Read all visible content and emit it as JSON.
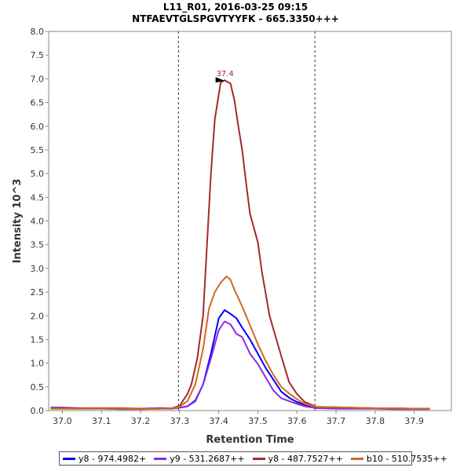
{
  "title_line1": "L11_R01, 2016-03-25 09:15",
  "title_line2": "NTFAEVTGLSPGVTYYFK - 665.3350+++",
  "chart_data": {
    "type": "line",
    "xlabel": "Retention Time",
    "ylabel": "Intensity 10^3",
    "xlim": [
      36.965,
      37.995
    ],
    "ylim": [
      0,
      8.0
    ],
    "x_ticks": [
      "37.0",
      "37.1",
      "37.2",
      "37.3",
      "37.4",
      "37.5",
      "37.6",
      "37.7",
      "37.8",
      "37.9"
    ],
    "y_ticks": [
      "0.0",
      "0.5",
      "1.0",
      "1.5",
      "2.0",
      "2.5",
      "3.0",
      "3.5",
      "4.0",
      "4.5",
      "5.0",
      "5.5",
      "6.0",
      "6.5",
      "7.0",
      "7.5",
      "8.0"
    ],
    "integration_bounds": [
      37.297,
      37.646
    ],
    "peak_label": {
      "text": "37.4",
      "x": 37.42,
      "y": 6.97,
      "color": "#a52a2a"
    },
    "grid": false,
    "legend_position": "bottom",
    "series": [
      {
        "name": "y8 - 974.4982+",
        "color": "#0000ff",
        "x": [
          36.97,
          37.0,
          37.05,
          37.1,
          37.15,
          37.2,
          37.25,
          37.28,
          37.3,
          37.32,
          37.34,
          37.36,
          37.38,
          37.4,
          37.415,
          37.43,
          37.445,
          37.46,
          37.48,
          37.5,
          37.52,
          37.54,
          37.56,
          37.58,
          37.6,
          37.62,
          37.65,
          37.7,
          37.75,
          37.8,
          37.85,
          37.9,
          37.94
        ],
        "y": [
          0.06,
          0.06,
          0.05,
          0.05,
          0.04,
          0.04,
          0.05,
          0.05,
          0.06,
          0.09,
          0.2,
          0.55,
          1.2,
          1.95,
          2.12,
          2.04,
          1.95,
          1.75,
          1.5,
          1.2,
          0.9,
          0.65,
          0.4,
          0.27,
          0.18,
          0.12,
          0.06,
          0.05,
          0.05,
          0.05,
          0.04,
          0.04,
          0.04
        ]
      },
      {
        "name": "y9 - 531.2687++",
        "color": "#8a2be2",
        "x": [
          36.97,
          37.0,
          37.05,
          37.1,
          37.15,
          37.2,
          37.25,
          37.28,
          37.3,
          37.32,
          37.34,
          37.36,
          37.38,
          37.4,
          37.415,
          37.43,
          37.445,
          37.46,
          37.48,
          37.5,
          37.52,
          37.54,
          37.56,
          37.58,
          37.6,
          37.62,
          37.65,
          37.7,
          37.75,
          37.8,
          37.85,
          37.9,
          37.94
        ],
        "y": [
          0.04,
          0.04,
          0.04,
          0.04,
          0.03,
          0.03,
          0.04,
          0.04,
          0.06,
          0.09,
          0.22,
          0.55,
          1.1,
          1.7,
          1.88,
          1.82,
          1.62,
          1.55,
          1.2,
          0.98,
          0.7,
          0.42,
          0.26,
          0.2,
          0.14,
          0.09,
          0.05,
          0.04,
          0.04,
          0.04,
          0.03,
          0.03,
          0.03
        ]
      },
      {
        "name": "y8 - 487.7527++",
        "color": "#a52a2a",
        "x": [
          36.97,
          37.0,
          37.05,
          37.1,
          37.15,
          37.2,
          37.25,
          37.28,
          37.3,
          37.32,
          37.33,
          37.345,
          37.36,
          37.37,
          37.38,
          37.39,
          37.405,
          37.415,
          37.43,
          37.44,
          37.45,
          37.46,
          37.47,
          37.48,
          37.5,
          37.51,
          37.53,
          37.56,
          37.58,
          37.6,
          37.62,
          37.65,
          37.7,
          37.75,
          37.8,
          37.85,
          37.9,
          37.94
        ],
        "y": [
          0.05,
          0.05,
          0.05,
          0.05,
          0.05,
          0.04,
          0.04,
          0.05,
          0.1,
          0.35,
          0.55,
          1.1,
          2.0,
          3.5,
          5.0,
          6.15,
          6.92,
          6.97,
          6.9,
          6.55,
          6.0,
          5.5,
          4.8,
          4.15,
          3.55,
          2.95,
          2.0,
          1.15,
          0.6,
          0.35,
          0.18,
          0.08,
          0.07,
          0.06,
          0.05,
          0.05,
          0.04,
          0.04
        ]
      },
      {
        "name": "b10 - 510.7535++",
        "color": "#d2691e",
        "x": [
          36.97,
          37.0,
          37.05,
          37.1,
          37.15,
          37.2,
          37.25,
          37.28,
          37.3,
          37.32,
          37.34,
          37.36,
          37.375,
          37.39,
          37.405,
          37.42,
          37.43,
          37.44,
          37.46,
          37.48,
          37.5,
          37.52,
          37.54,
          37.56,
          37.58,
          37.6,
          37.62,
          37.65,
          37.7,
          37.75,
          37.8,
          37.85,
          37.9,
          37.94
        ],
        "y": [
          0.04,
          0.04,
          0.04,
          0.04,
          0.04,
          0.03,
          0.04,
          0.05,
          0.08,
          0.2,
          0.55,
          1.3,
          2.15,
          2.5,
          2.7,
          2.83,
          2.76,
          2.55,
          2.2,
          1.8,
          1.4,
          1.05,
          0.75,
          0.5,
          0.36,
          0.24,
          0.14,
          0.08,
          0.07,
          0.06,
          0.05,
          0.05,
          0.04,
          0.04
        ]
      }
    ]
  }
}
